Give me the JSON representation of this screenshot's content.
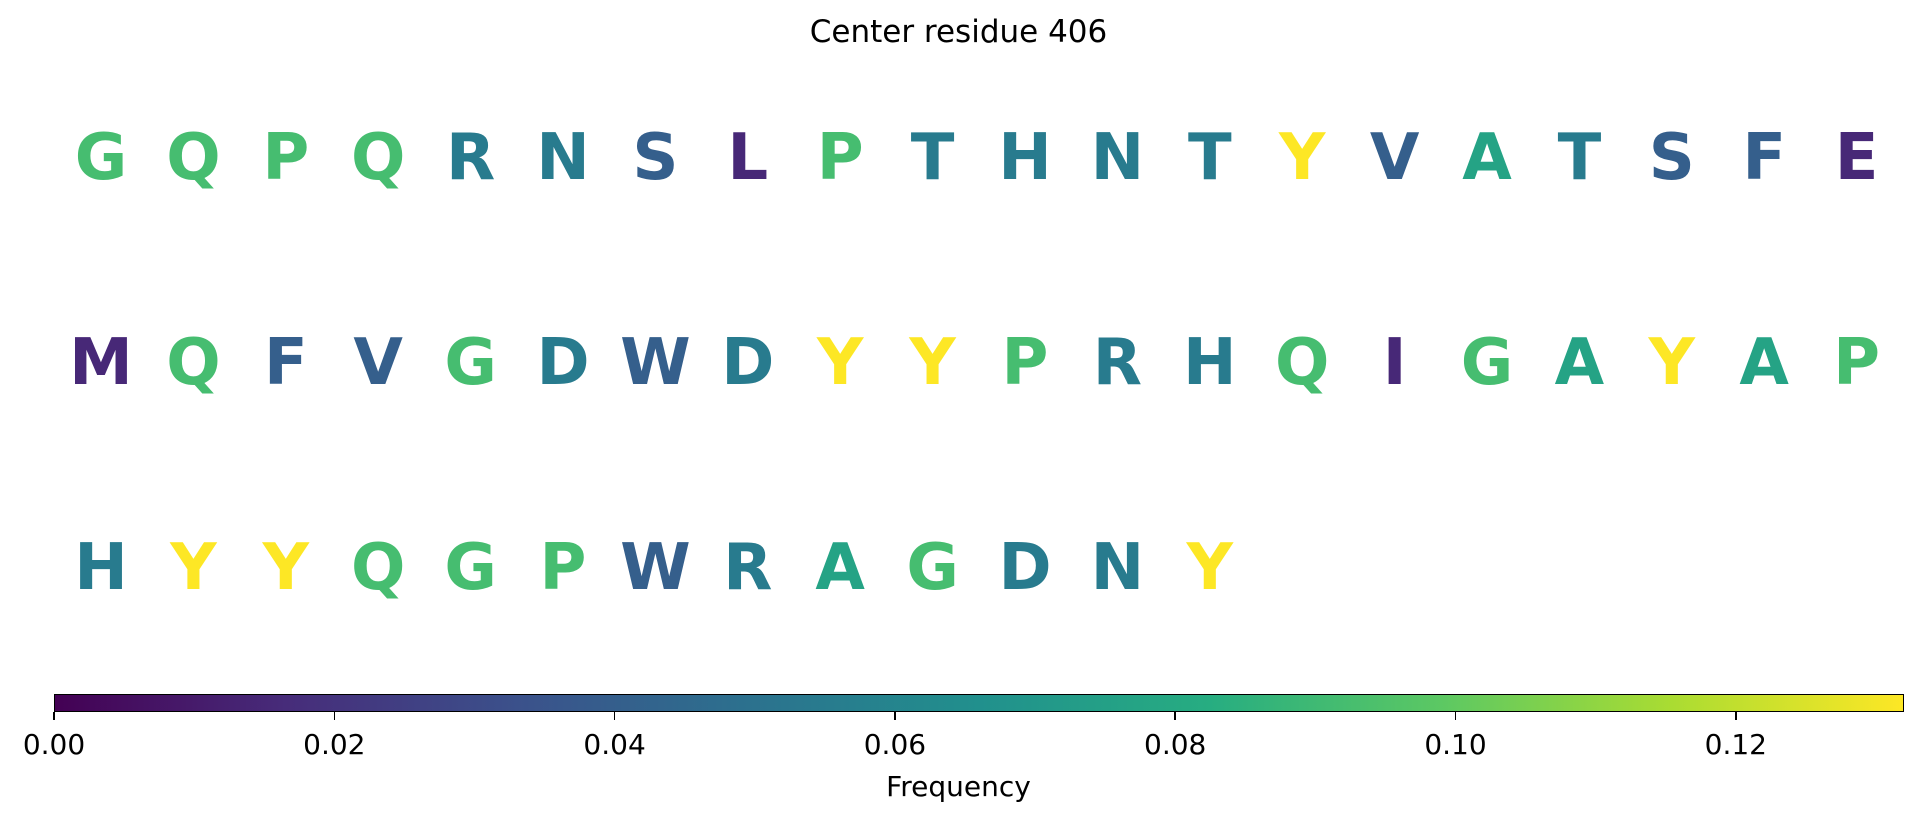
{
  "chart_data": {
    "type": "sequence-logo-colored",
    "title": "Center residue 406",
    "rows": [
      [
        "G",
        "Q",
        "P",
        "Q",
        "R",
        "N",
        "S",
        "L",
        "P",
        "T",
        "H",
        "N",
        "T",
        "Y",
        "V",
        "A",
        "T",
        "S",
        "F",
        "E"
      ],
      [
        "M",
        "Q",
        "F",
        "V",
        "G",
        "D",
        "W",
        "D",
        "Y",
        "Y",
        "P",
        "R",
        "H",
        "Q",
        "I",
        "G",
        "A",
        "Y",
        "A",
        "P"
      ],
      [
        "H",
        "Y",
        "Y",
        "Q",
        "G",
        "P",
        "W",
        "R",
        "A",
        "G",
        "D",
        "N",
        "Y"
      ]
    ],
    "frequencies": {
      "Y": 0.132,
      "G": 0.092,
      "Q": 0.092,
      "P": 0.092,
      "A": 0.077,
      "R": 0.055,
      "N": 0.055,
      "T": 0.055,
      "H": 0.055,
      "D": 0.055,
      "S": 0.04,
      "V": 0.04,
      "F": 0.04,
      "W": 0.04,
      "L": 0.015,
      "E": 0.015,
      "M": 0.015,
      "I": 0.015
    },
    "colormap": "viridis",
    "colorbar": {
      "range": [
        0,
        0.132
      ],
      "ticks": [
        0.0,
        0.02,
        0.04,
        0.06,
        0.08,
        0.1,
        0.12
      ],
      "tick_labels": [
        "0.00",
        "0.02",
        "0.04",
        "0.06",
        "0.08",
        "0.10",
        "0.12"
      ],
      "label": "Frequency",
      "orientation": "horizontal"
    }
  }
}
